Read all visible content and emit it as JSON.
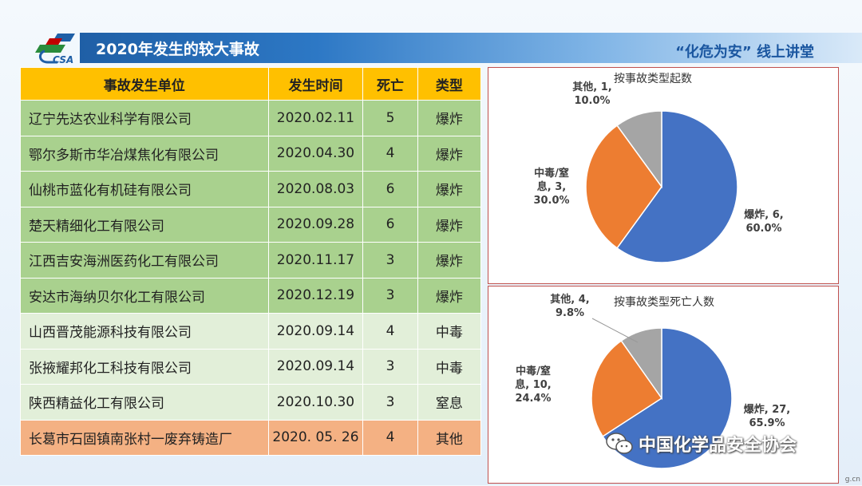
{
  "header": {
    "title": "2020年发生的较大事故",
    "right_text": "“化危为安” 线上讲堂",
    "logo_text": "CSA"
  },
  "table": {
    "columns": [
      "事故发生单位",
      "发生时间",
      "死亡",
      "类型"
    ],
    "rows": [
      {
        "unit": "辽宁先达农业科学有限公司",
        "date": "2020.02.11",
        "deaths": "5",
        "type": "爆炸",
        "group": "g1"
      },
      {
        "unit": "鄂尔多斯市华冶煤焦化有限公司",
        "date": "2020.04.30",
        "deaths": "4",
        "type": "爆炸",
        "group": "g1"
      },
      {
        "unit": "仙桃市蓝化有机硅有限公司",
        "date": "2020.08.03",
        "deaths": "6",
        "type": "爆炸",
        "group": "g1"
      },
      {
        "unit": "楚天精细化工有限公司",
        "date": "2020.09.28",
        "deaths": "6",
        "type": "爆炸",
        "group": "g1"
      },
      {
        "unit": "江西吉安海洲医药化工有限公司",
        "date": "2020.11.17",
        "deaths": "3",
        "type": "爆炸",
        "group": "g1"
      },
      {
        "unit": "安达市海纳贝尔化工有限公司",
        "date": "2020.12.19",
        "deaths": "3",
        "type": "爆炸",
        "group": "g1"
      },
      {
        "unit": "山西晋茂能源科技有限公司",
        "date": "2020.09.14",
        "deaths": "4",
        "type": "中毒",
        "group": "g2"
      },
      {
        "unit": "张掖耀邦化工科技有限公司",
        "date": "2020.09.14",
        "deaths": "3",
        "type": "中毒",
        "group": "g2"
      },
      {
        "unit": "陕西精益化工有限公司",
        "date": "2020.10.30",
        "deaths": "3",
        "type": "窒息",
        "group": "g2"
      },
      {
        "unit": "长葛市石固镇南张村一废弃铸造厂",
        "date": "2020. 05. 26",
        "deaths": "4",
        "type": "其他",
        "group": "g3"
      }
    ]
  },
  "chart_data": [
    {
      "type": "pie",
      "title": "按事故类型起数",
      "slices": [
        {
          "name": "爆炸",
          "value": 6,
          "percent": "60.0%",
          "color": "#4472c4",
          "label_lines": [
            "爆炸, 6,",
            "60.0%"
          ]
        },
        {
          "name": "中毒/窒息",
          "value": 3,
          "percent": "30.0%",
          "color": "#ed7d31",
          "label_lines": [
            "中毒/窒",
            "息, 3,",
            "30.0%"
          ]
        },
        {
          "name": "其他",
          "value": 1,
          "percent": "10.0%",
          "color": "#a5a5a5",
          "label_lines": [
            "其他, 1,",
            "10.0%"
          ]
        }
      ]
    },
    {
      "type": "pie",
      "title": "按事故类型死亡人数",
      "slices": [
        {
          "name": "爆炸",
          "value": 27,
          "percent": "65.9%",
          "color": "#4472c4",
          "label_lines": [
            "爆炸, 27,",
            "65.9%"
          ]
        },
        {
          "name": "中毒/窒息",
          "value": 10,
          "percent": "24.4%",
          "color": "#ed7d31",
          "label_lines": [
            "中毒/窒",
            "息, 10,",
            "24.4%"
          ]
        },
        {
          "name": "其他",
          "value": 4,
          "percent": "9.8%",
          "color": "#a5a5a5",
          "label_lines": [
            "其他, 4,",
            "9.8%"
          ]
        }
      ]
    }
  ],
  "watermark": {
    "text": "中国化学品安全协会",
    "corner": "g.cn"
  }
}
